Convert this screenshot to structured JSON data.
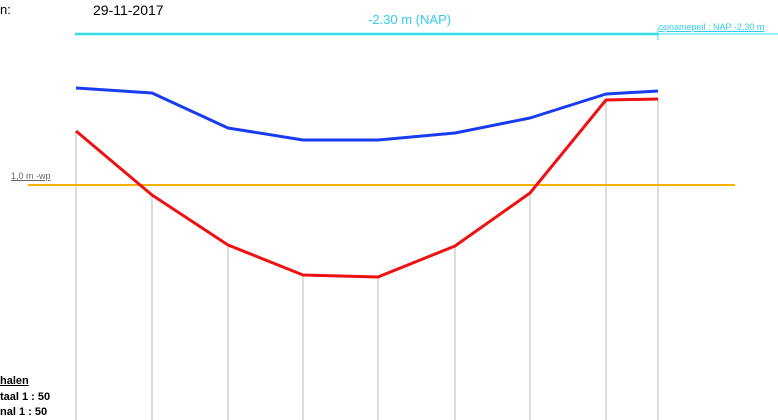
{
  "header": {
    "left_fragment": "n:",
    "date": "29-11-2017"
  },
  "reference_lines": {
    "nap_label": "-2.30 m (NAP)",
    "opname_label": "opnamepeil : NAP -2,30 m",
    "wp_label": "1,0 m -wp",
    "colors": {
      "nap": "#33ddee",
      "wp": "#ffb000",
      "grid": "#b8b8b8"
    }
  },
  "scales": {
    "title": "halen",
    "horizontal": "taal  1 : 50",
    "vertical": "nal  1 : 50"
  },
  "profile": {
    "stations": 9,
    "blue_color": "#1a3cf0",
    "red_color": "#ee1111"
  }
}
